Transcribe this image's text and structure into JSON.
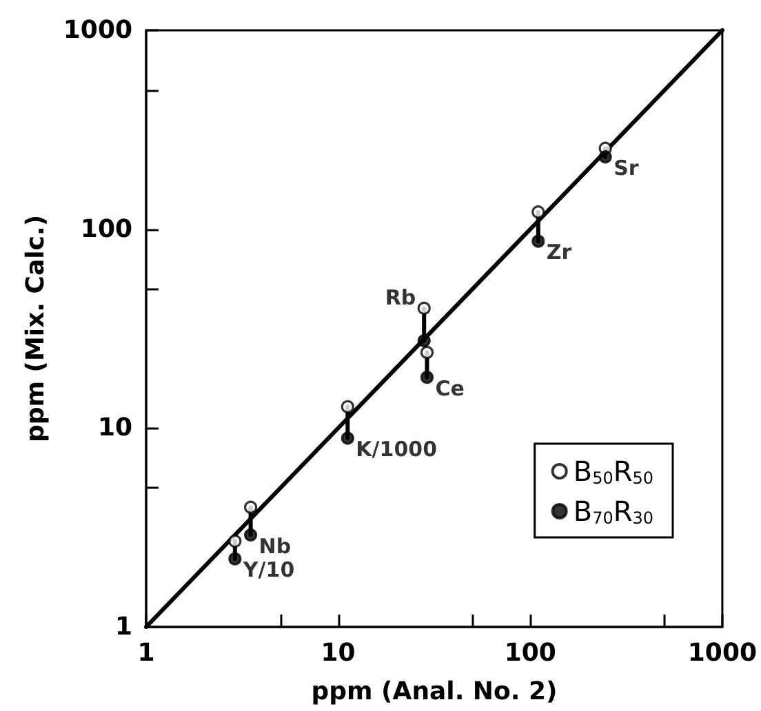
{
  "chart_data": {
    "type": "scatter",
    "xlabel": "ppm (Anal. No. 2)",
    "ylabel": "ppm (Mix. Calc.)",
    "log": "xy",
    "xlim": [
      1,
      1000
    ],
    "ylim": [
      1,
      1000
    ],
    "xticks": [
      1,
      {
        "value": 5,
        "label": null
      },
      10,
      {
        "value": 50,
        "label": null
      },
      100,
      {
        "value": 500,
        "label": null
      },
      1000
    ],
    "yticks": [
      1,
      {
        "value": 5,
        "label": null
      },
      10,
      {
        "value": 50,
        "label": null
      },
      100,
      {
        "value": 500,
        "label": null
      },
      1000
    ],
    "grid": false,
    "legend": "bottom right",
    "marker": "circle",
    "series": [
      {
        "type": "line",
        "color": "#000000",
        "marker": "none",
        "line_style": "solid",
        "x": [
          1,
          1000
        ],
        "values": [
          1,
          1000
        ]
      },
      {
        "type": "line",
        "color": "#000000",
        "marker": "none",
        "line_style": "solid",
        "x": [
          2.9,
          2.9,
          null,
          3.5,
          3.5,
          null,
          11.2,
          11.2,
          null,
          28,
          28,
          null,
          29,
          29,
          null,
          110,
          110,
          null,
          246,
          246
        ],
        "values": [
          2.7,
          2.2,
          null,
          4.0,
          2.9,
          null,
          12.8,
          8.9,
          null,
          40,
          27.5,
          null,
          24,
          18,
          null,
          122,
          87,
          null,
          255,
          231
        ]
      },
      {
        "name": "B$_{50}$R$_{50}$",
        "color": "#ffffff",
        "x": [
          2.9,
          3.5,
          11.2,
          28,
          29,
          110,
          246
        ],
        "values": [
          2.7,
          4.0,
          12.8,
          40,
          24,
          122,
          255
        ]
      },
      {
        "name": "B$_{70}$R$_{30}$",
        "color": "#000000",
        "x": [
          2.9,
          3.5,
          11.2,
          28,
          29,
          110,
          246
        ],
        "values": [
          2.2,
          2.9,
          8.9,
          27.5,
          18,
          87,
          231
        ]
      }
    ],
    "annotations": [
      {
        "text": "Y/10",
        "x": 2.9,
        "y": 2.2
      },
      {
        "text": "Nb",
        "x": 3.5,
        "y": 2.9
      },
      {
        "text": "K/1000",
        "x": 11.2,
        "y": 8.9
      },
      {
        "text": "Rb",
        "x": 28,
        "y": 40
      },
      {
        "text": "Ce",
        "x": 29,
        "y": 18
      },
      {
        "text": "Zr",
        "x": 110,
        "y": 87
      },
      {
        "text": "Sr",
        "x": 246,
        "y": 231
      }
    ]
  }
}
